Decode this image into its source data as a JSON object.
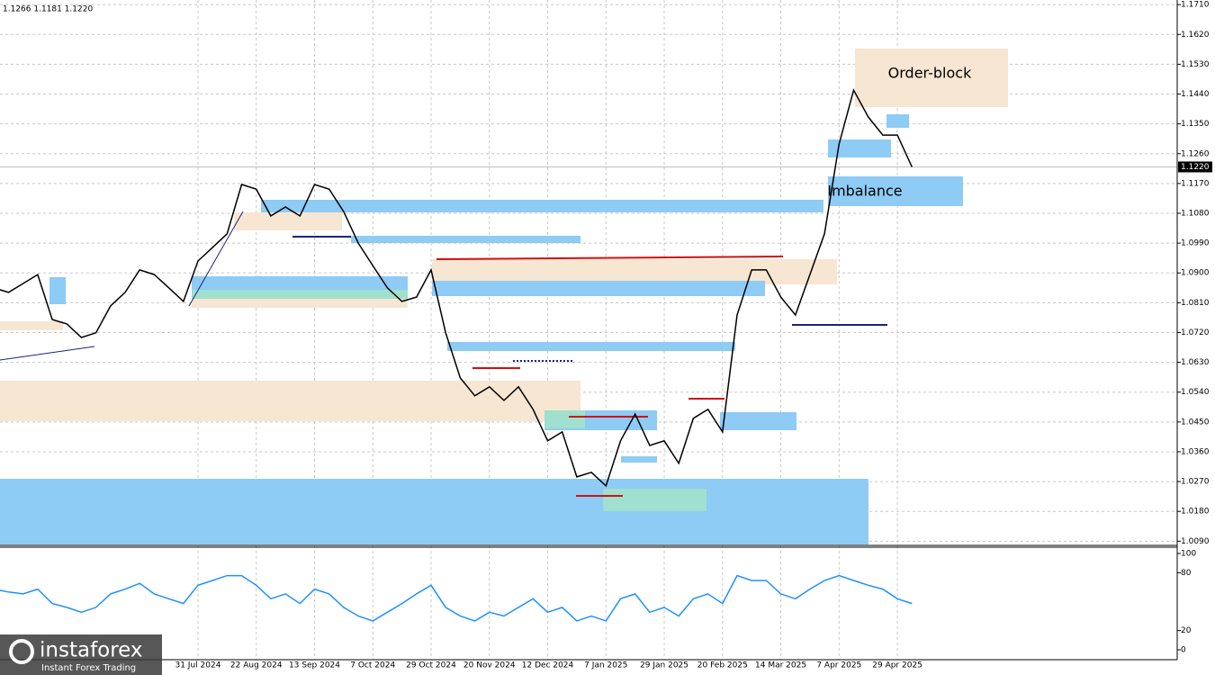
{
  "chart_data": [
    {
      "type": "line",
      "header": "1.1266 1.1181 1.1220",
      "color": "#000000",
      "grid": true,
      "current_price": {
        "value": 1.122,
        "label": "1.1220"
      },
      "annotations": [
        "Order-block",
        "Imbalance"
      ],
      "categories": [
        null,
        null,
        null,
        null,
        null,
        null,
        null,
        null,
        null,
        null,
        null,
        null,
        null,
        null,
        "31 Jul 2024",
        null,
        null,
        null,
        "22 Aug 2024",
        null,
        null,
        null,
        "13 Sep 2024",
        null,
        null,
        null,
        "7 Oct 2024",
        null,
        null,
        null,
        "29 Oct 2024",
        null,
        null,
        null,
        "20 Nov 2024",
        null,
        null,
        null,
        "12 Dec 2024",
        null,
        null,
        null,
        "7 Jan 2025",
        null,
        null,
        null,
        "29 Jan 2025",
        null,
        null,
        null,
        "20 Feb 2025",
        null,
        null,
        null,
        "14 Mar 2025",
        null,
        null,
        null,
        "7 Apr 2025",
        null,
        null,
        null,
        "29 Apr 2025",
        null
      ],
      "values": [
        1.0855,
        1.0841,
        1.0868,
        1.0895,
        1.0759,
        1.0746,
        1.0705,
        1.0719,
        1.08,
        1.0841,
        1.0909,
        1.0895,
        1.0855,
        1.0814,
        1.0936,
        1.0977,
        1.1018,
        1.1167,
        1.1153,
        1.1072,
        1.1099,
        1.1072,
        1.1167,
        1.1153,
        1.1085,
        1.099,
        1.0922,
        1.0855,
        1.0814,
        1.0827,
        1.0909,
        1.0719,
        1.0583,
        1.0529,
        1.0556,
        1.0515,
        1.0556,
        1.0488,
        1.0393,
        1.042,
        1.0284,
        1.0298,
        1.0257,
        1.0393,
        1.0474,
        1.0379,
        1.0393,
        1.0325,
        1.0461,
        1.0488,
        1.042,
        1.0773,
        1.0909,
        1.0909,
        1.0827,
        1.0773,
        1.0895,
        1.1018,
        1.1289,
        1.1452,
        1.1371,
        1.1316,
        1.1316,
        1.122
      ],
      "ylim": [
        1.008,
        1.1724
      ],
      "yticks": [
        {
          "value": 1.171,
          "label": "1.1710"
        },
        {
          "value": 1.162,
          "label": "1.1620"
        },
        {
          "value": 1.153,
          "label": "1.1530"
        },
        {
          "value": 1.144,
          "label": "1.1440"
        },
        {
          "value": 1.135,
          "label": "1.1350"
        },
        {
          "value": 1.126,
          "label": "1.1260"
        },
        {
          "value": 1.117,
          "label": "1.1170"
        },
        {
          "value": 1.108,
          "label": "1.1080"
        },
        {
          "value": 1.099,
          "label": "1.0990"
        },
        {
          "value": 1.09,
          "label": "1.0900"
        },
        {
          "value": 1.081,
          "label": "1.0810"
        },
        {
          "value": 1.072,
          "label": "1.0720"
        },
        {
          "value": 1.063,
          "label": "1.0630"
        },
        {
          "value": 1.054,
          "label": "1.0540"
        },
        {
          "value": 1.045,
          "label": "1.0450"
        },
        {
          "value": 1.036,
          "label": "1.0360"
        },
        {
          "value": 1.027,
          "label": "1.0270"
        },
        {
          "value": 1.018,
          "label": "1.0180"
        },
        {
          "value": 1.009,
          "label": "1.0090"
        }
      ]
    },
    {
      "type": "line",
      "color": "#1e90ff",
      "values": [
        63,
        60,
        58,
        63,
        48,
        44,
        39,
        44,
        58,
        63,
        69,
        58,
        53,
        48,
        67,
        72,
        77,
        77,
        67,
        53,
        58,
        48,
        63,
        58,
        44,
        35,
        30,
        39,
        48,
        58,
        67,
        44,
        35,
        30,
        39,
        35,
        44,
        53,
        39,
        44,
        30,
        35,
        30,
        53,
        58,
        39,
        44,
        35,
        53,
        58,
        48,
        77,
        72,
        72,
        58,
        53,
        63,
        72,
        77,
        72,
        67,
        63,
        53,
        48
      ],
      "ylim": [
        0,
        100
      ],
      "yticks": [
        100,
        80,
        20,
        0
      ]
    }
  ],
  "brand": {
    "name": "instaforex",
    "tagline": "Instant Forex Trading"
  }
}
